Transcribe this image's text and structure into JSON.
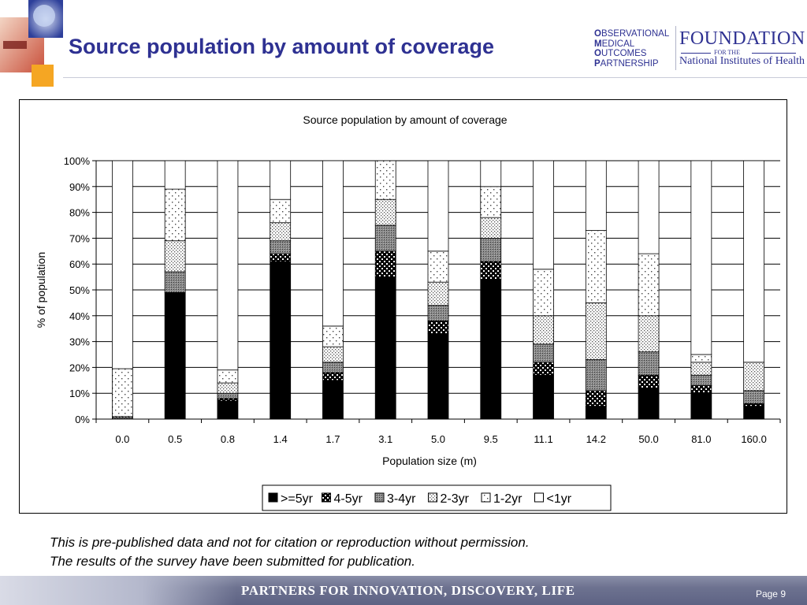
{
  "header": {
    "title": "Source population by amount of coverage",
    "omop_logo_lines": [
      {
        "cap": "O",
        "rest": "BSERVATIONAL"
      },
      {
        "cap": "M",
        "rest": "EDICAL"
      },
      {
        "cap": "O",
        "rest": "UTCOMES"
      },
      {
        "cap": "P",
        "rest": "ARTNERSHIP"
      }
    ],
    "fnih_logo": {
      "name": "FOUNDATION",
      "for_the": "FOR THE",
      "institute": "National Institutes of Health"
    }
  },
  "chart_data": {
    "type": "bar",
    "stacked": true,
    "title": "Source population by amount of coverage",
    "xlabel": "Population size (m)",
    "ylabel": "% of population",
    "ylim": [
      0,
      100
    ],
    "yticks": [
      "0%",
      "10%",
      "20%",
      "30%",
      "40%",
      "50%",
      "60%",
      "70%",
      "80%",
      "90%",
      "100%"
    ],
    "grid": "horizontal",
    "legend_position": "bottom",
    "categories": [
      "0.0",
      "0.5",
      "0.8",
      "1.4",
      "1.7",
      "3.1",
      "5.0",
      "9.5",
      "11.1",
      "14.2",
      "50.0",
      "81.0",
      "160.0"
    ],
    "series": [
      {
        "name": ">=5yr",
        "pattern": "solid",
        "values": [
          0,
          49,
          7,
          61,
          15,
          55,
          33,
          54,
          17,
          5,
          12,
          10,
          5
        ]
      },
      {
        "name": "4-5yr",
        "pattern": "checker",
        "values": [
          0,
          0,
          1,
          3,
          3,
          10,
          5,
          7,
          5,
          6,
          5,
          3,
          1
        ]
      },
      {
        "name": "3-4yr",
        "pattern": "dense",
        "values": [
          0.5,
          8,
          2,
          5,
          4,
          10,
          6,
          9,
          7,
          12,
          9,
          4,
          5
        ]
      },
      {
        "name": "2-3yr",
        "pattern": "dots",
        "values": [
          0.5,
          12,
          4,
          7,
          6,
          10,
          9,
          8,
          11,
          22,
          14,
          5,
          11
        ]
      },
      {
        "name": "1-2yr",
        "pattern": "sparse",
        "values": [
          18.5,
          20,
          5,
          9,
          8,
          15,
          12,
          12,
          18,
          28,
          24,
          3,
          0
        ]
      },
      {
        "name": "<1yr",
        "pattern": "white",
        "values": [
          80.5,
          11,
          81,
          15,
          64,
          0,
          35,
          10,
          42,
          27,
          36,
          75,
          78
        ]
      }
    ]
  },
  "notes": {
    "line1": "This is pre-published data and not for citation or reproduction without permission.",
    "line2": "The results of the survey have been submitted for publication."
  },
  "footer": {
    "tagline": "PARTNERS FOR INNOVATION, DISCOVERY, LIFE",
    "page": "Page 9"
  },
  "colors": {
    "title": "#2e3192",
    "bar_fill": "#000000"
  }
}
